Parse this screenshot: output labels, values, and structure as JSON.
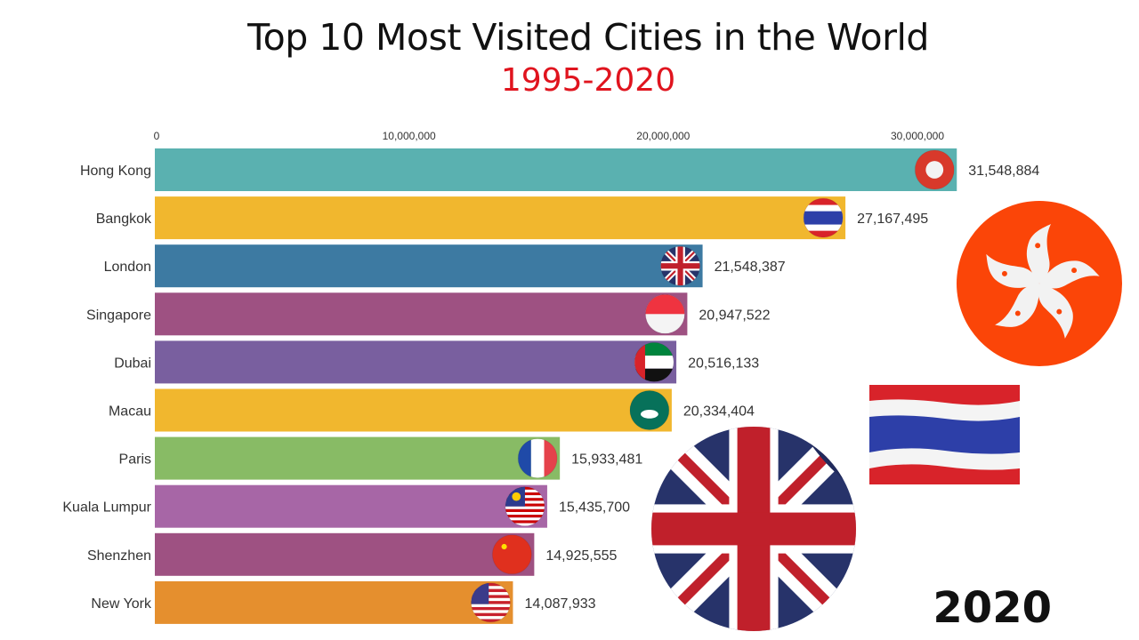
{
  "chart_data": {
    "type": "bar",
    "orientation": "horizontal",
    "title": "Top 10 Most Visited Cities in the World",
    "subtitle": "1995-2020",
    "current_year": "2020",
    "xlabel": "",
    "ylabel": "",
    "xlim": [
      0,
      30000000
    ],
    "x_ticks": [
      0,
      10000000,
      20000000,
      30000000
    ],
    "x_tick_labels": [
      "0",
      "10,000,000",
      "20,000,000",
      "30,000,000"
    ],
    "axis_position": "top",
    "grid": false,
    "categories": [
      "Hong Kong",
      "Bangkok",
      "London",
      "Singapore",
      "Dubai",
      "Macau",
      "Paris",
      "Kuala Lumpur",
      "Shenzhen",
      "New York"
    ],
    "values": [
      31548884,
      27167495,
      21548387,
      20947522,
      20516133,
      20334404,
      15933481,
      15435700,
      14925555,
      14087933
    ],
    "value_labels": [
      "31,548,884",
      "27,167,495",
      "21,548,387",
      "20,947,522",
      "20,516,133",
      "20,334,404",
      "15,933,481",
      "15,435,700",
      "14,925,555",
      "14,087,933"
    ],
    "colors": [
      "#5ab1b0",
      "#f1b72e",
      "#3d7aa2",
      "#9e5182",
      "#795f9f",
      "#f1b72e",
      "#88bb65",
      "#a766a6",
      "#9e5182",
      "#e58f2e"
    ],
    "flags": [
      "hong-kong-flag-icon",
      "thailand-flag-icon",
      "uk-flag-icon",
      "singapore-flag-icon",
      "uae-flag-icon",
      "macau-flag-icon",
      "france-flag-icon",
      "malaysia-flag-icon",
      "china-flag-icon",
      "usa-flag-icon"
    ]
  },
  "decorations": {
    "large_flags": [
      "hong-kong-flag-icon",
      "thailand-flag-icon",
      "uk-flag-sticker-icon"
    ]
  },
  "accent_colors": {
    "subtitle": "#e0141e",
    "hk_red": "#fb4508"
  }
}
